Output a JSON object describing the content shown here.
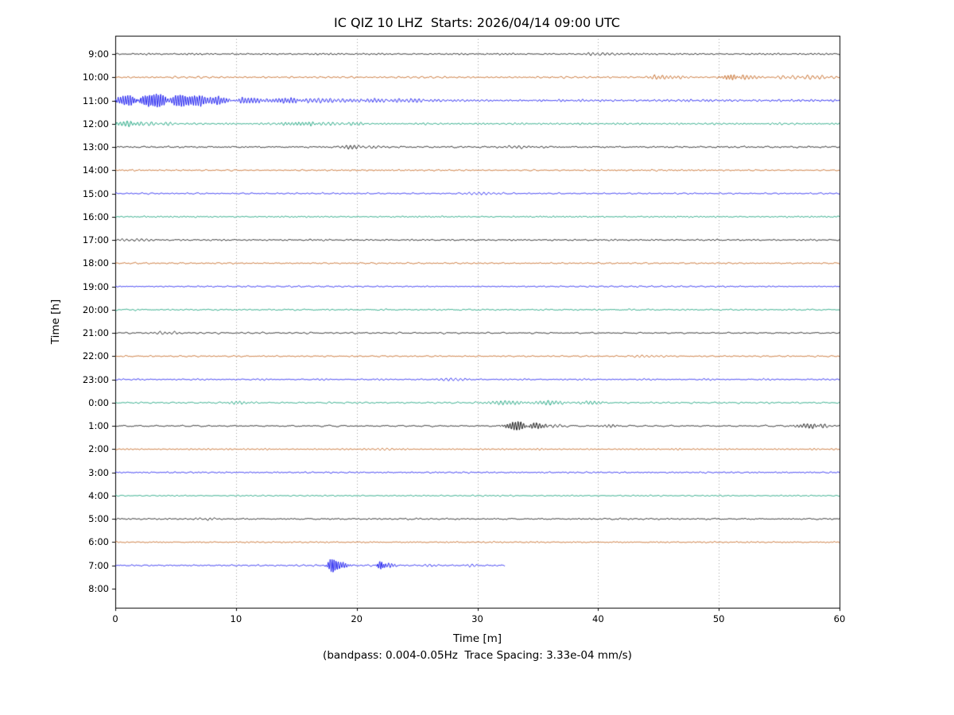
{
  "chart_data": {
    "type": "line",
    "subtype": "seismic-dayplot",
    "title": "IC QIZ 10 LHZ  Starts: 2026/04/14 09:00 UTC",
    "xlabel": "Time [m]",
    "ylabel": "Time [h]",
    "caption": "(bandpass: 0.004-0.05Hz  Trace Spacing: 3.33e-04 mm/s)",
    "x_range": [
      0,
      60
    ],
    "x_ticks": [
      0,
      10,
      20,
      30,
      40,
      50,
      60
    ],
    "grid": "dotted-vertical",
    "legend": "none",
    "trace_colors": [
      "#000000",
      "#c05a0e",
      "#1212ee",
      "#009a70"
    ],
    "grid_color": "#8a8a8a",
    "rows": [
      {
        "label": "9:00",
        "noise": 1.0,
        "events": [
          {
            "t": 40,
            "amp": 1.3,
            "w": 2
          }
        ]
      },
      {
        "label": "10:00",
        "noise": 1.1,
        "events": [
          {
            "t": 45.5,
            "amp": 2.2,
            "w": 1.5,
            "f": 3
          },
          {
            "t": 51,
            "amp": 3.0,
            "w": 0.8,
            "f": 4
          },
          {
            "t": 52.5,
            "amp": 2.2,
            "w": 1.2,
            "f": 3
          },
          {
            "t": 55.5,
            "amp": 1.8,
            "w": 1.5
          },
          {
            "t": 58,
            "amp": 1.6,
            "w": 1.5
          }
        ]
      },
      {
        "label": "11:00",
        "noise": 1.4,
        "events": [
          {
            "t": 1,
            "amp": 5,
            "w": 1.2,
            "f": 5
          },
          {
            "t": 3,
            "amp": 7,
            "w": 1.6,
            "f": 5.5
          },
          {
            "t": 5.5,
            "amp": 7,
            "w": 1.8,
            "f": 5
          },
          {
            "t": 8,
            "amp": 5,
            "w": 1.5,
            "f": 4.5
          },
          {
            "t": 11,
            "amp": 3,
            "w": 1.5,
            "f": 4
          },
          {
            "t": 14,
            "amp": 3,
            "w": 1.5,
            "f": 4
          },
          {
            "t": 17,
            "amp": 2,
            "w": 2,
            "f": 3
          },
          {
            "t": 21,
            "amp": 2.2,
            "w": 1.5,
            "f": 3.5
          },
          {
            "t": 24,
            "amp": 1.8,
            "w": 2,
            "f": 3
          }
        ]
      },
      {
        "label": "12:00",
        "noise": 1.1,
        "events": [
          {
            "t": 0.8,
            "amp": 2.4,
            "w": 1.5,
            "f": 3.5
          },
          {
            "t": 3,
            "amp": 1.8,
            "w": 2
          },
          {
            "t": 15.5,
            "amp": 2.2,
            "w": 1.8,
            "f": 3.5
          },
          {
            "t": 17.5,
            "amp": 1.8,
            "w": 1.2
          },
          {
            "t": 20,
            "amp": 1.6,
            "w": 0.8,
            "f": 3
          }
        ]
      },
      {
        "label": "13:00",
        "noise": 1.0,
        "events": [
          {
            "t": 19.5,
            "amp": 2.0,
            "w": 1.2,
            "f": 3
          },
          {
            "t": 21,
            "amp": 1.5,
            "w": 1
          },
          {
            "t": 33.5,
            "amp": 1.8,
            "w": 1.5,
            "f": 2.5
          },
          {
            "t": 35,
            "amp": 1.4,
            "w": 1
          }
        ]
      },
      {
        "label": "14:00",
        "noise": 0.9,
        "events": []
      },
      {
        "label": "15:00",
        "noise": 0.85,
        "events": [
          {
            "t": 30,
            "amp": 1.2,
            "w": 1.5
          }
        ]
      },
      {
        "label": "16:00",
        "noise": 0.85,
        "events": []
      },
      {
        "label": "17:00",
        "noise": 0.9,
        "events": [
          {
            "t": 2,
            "amp": 1.2,
            "w": 1.5
          }
        ]
      },
      {
        "label": "18:00",
        "noise": 0.85,
        "events": []
      },
      {
        "label": "19:00",
        "noise": 0.8,
        "events": []
      },
      {
        "label": "20:00",
        "noise": 0.85,
        "events": []
      },
      {
        "label": "21:00",
        "noise": 0.95,
        "events": [
          {
            "t": 4,
            "amp": 1.3,
            "w": 1.5
          }
        ]
      },
      {
        "label": "22:00",
        "noise": 0.85,
        "events": [
          {
            "t": 44,
            "amp": 1.2,
            "w": 1.5
          }
        ]
      },
      {
        "label": "23:00",
        "noise": 0.85,
        "events": [
          {
            "t": 28,
            "amp": 1.2,
            "w": 1.2
          }
        ]
      },
      {
        "label": "0:00",
        "noise": 1.0,
        "events": [
          {
            "t": 10,
            "amp": 1.6,
            "w": 1,
            "f": 3
          },
          {
            "t": 32.5,
            "amp": 2.2,
            "w": 1.8,
            "f": 3
          },
          {
            "t": 36,
            "amp": 2.2,
            "w": 1.5,
            "f": 3
          },
          {
            "t": 39.5,
            "amp": 1.8,
            "w": 1.2,
            "f": 3
          }
        ]
      },
      {
        "label": "1:00",
        "noise": 0.9,
        "events": [
          {
            "t": 33.3,
            "amp": 5.5,
            "w": 0.9,
            "f": 4.5
          },
          {
            "t": 34.8,
            "amp": 3.5,
            "w": 0.9,
            "f": 4
          },
          {
            "t": 36.5,
            "amp": 1.5,
            "w": 1
          },
          {
            "t": 41,
            "amp": 1.6,
            "w": 0.8,
            "f": 3
          },
          {
            "t": 57.5,
            "amp": 2.6,
            "w": 1.2,
            "f": 3.5
          },
          {
            "t": 58.5,
            "amp": 1.8,
            "w": 0.8
          }
        ]
      },
      {
        "label": "2:00",
        "noise": 0.85,
        "events": [
          {
            "t": 22.5,
            "amp": 1.2,
            "w": 1
          }
        ]
      },
      {
        "label": "3:00",
        "noise": 0.85,
        "events": []
      },
      {
        "label": "4:00",
        "noise": 0.8,
        "events": []
      },
      {
        "label": "5:00",
        "noise": 0.9,
        "events": [
          {
            "t": 8,
            "amp": 1.2,
            "w": 1.2
          }
        ]
      },
      {
        "label": "6:00",
        "noise": 0.8,
        "events": []
      },
      {
        "label": "7:00",
        "noise": 0.95,
        "end": 32.3,
        "events": [
          {
            "t": 18,
            "amp": 10,
            "w": 0.35,
            "f": 6
          },
          {
            "t": 18.7,
            "amp": 4,
            "w": 0.6,
            "f": 5
          },
          {
            "t": 22,
            "amp": 5.5,
            "w": 0.3,
            "f": 6
          },
          {
            "t": 22.7,
            "amp": 2.5,
            "w": 0.6,
            "f": 4
          },
          {
            "t": 26,
            "amp": 1.4,
            "w": 0.8
          },
          {
            "t": 29.5,
            "amp": 1.4,
            "w": 0.8
          }
        ]
      },
      {
        "label": "8:00",
        "noise": 0,
        "no_data": true,
        "events": []
      }
    ]
  }
}
